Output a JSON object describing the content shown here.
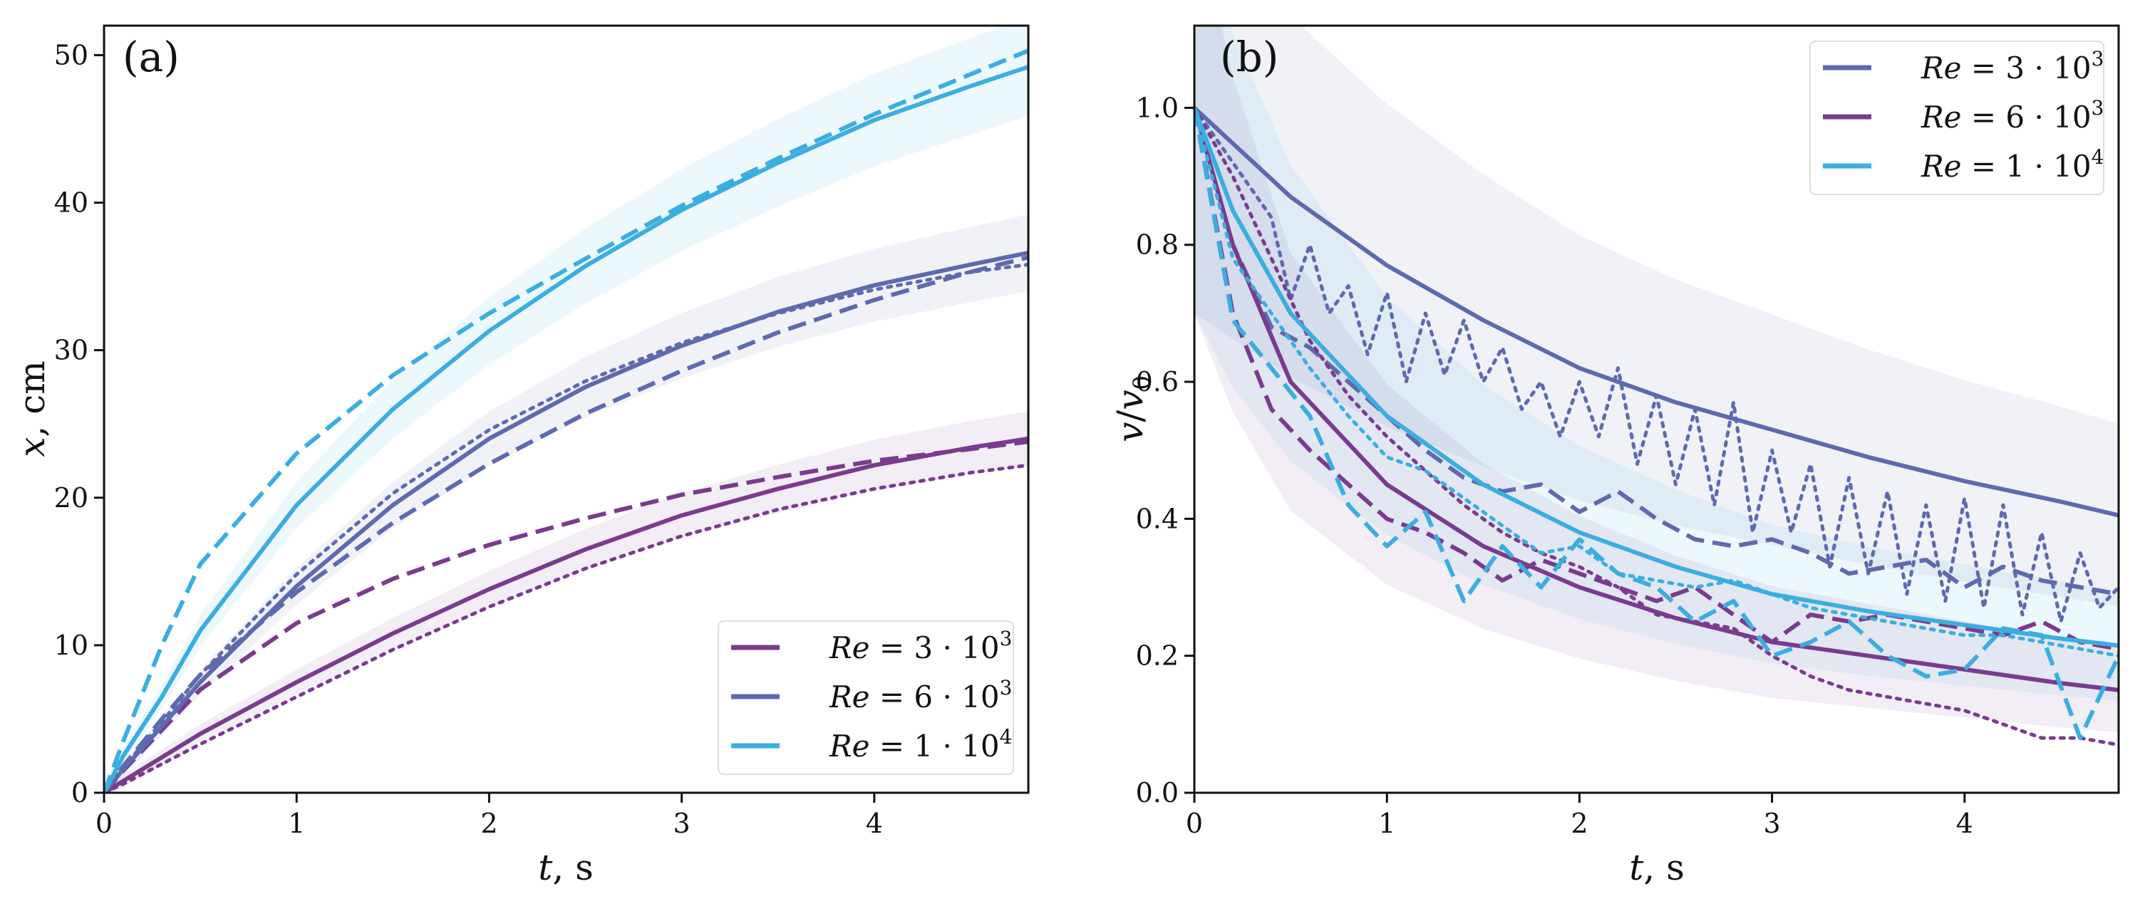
{
  "figure": {
    "colors": {
      "purple": "#7a3b8f",
      "slate": "#5d6aaf",
      "sky": "#3aaee1"
    }
  },
  "chart_data": [
    {
      "type": "line",
      "panel_label": "(a)",
      "xlabel": "t, s",
      "ylabel": "x, cm",
      "xlim": [
        0,
        4.8
      ],
      "ylim": [
        0,
        52
      ],
      "xticks": [
        0,
        1,
        2,
        3,
        4
      ],
      "yticks": [
        0,
        10,
        20,
        30,
        40,
        50
      ],
      "legend": {
        "placement": "bottom-right",
        "entries": [
          {
            "label": "Re = 3 · 10^3",
            "color": "#7a3b8f"
          },
          {
            "label": "Re = 6 · 10^3",
            "color": "#5d6aaf"
          },
          {
            "label": "Re = 1 · 10^4",
            "color": "#3aaee1"
          }
        ]
      },
      "series": [
        {
          "name": "Re=3e3 solid",
          "color": "#7a3b8f",
          "style": "solid",
          "x": [
            0,
            0.1,
            0.5,
            1,
            1.5,
            2,
            2.5,
            3,
            3.5,
            4,
            4.5,
            4.8
          ],
          "y": [
            0,
            0.8,
            4,
            7.5,
            10.8,
            13.8,
            16.5,
            18.8,
            20.6,
            22.2,
            23.4,
            24
          ]
        },
        {
          "name": "Re=3e3 dashed",
          "color": "#7a3b8f",
          "style": "dashed",
          "x": [
            0,
            0.1,
            0.5,
            1,
            1.5,
            2,
            2.5,
            3,
            3.5,
            4,
            4.5,
            4.8
          ],
          "y": [
            0,
            1.5,
            7,
            11.5,
            14.5,
            16.8,
            18.6,
            20.2,
            21.4,
            22.5,
            23.3,
            23.8
          ]
        },
        {
          "name": "Re=3e3 dotted",
          "color": "#7a3b8f",
          "style": "dotted",
          "x": [
            0,
            0.1,
            0.5,
            1,
            1.5,
            2,
            2.5,
            3,
            3.5,
            4,
            4.5,
            4.8
          ],
          "y": [
            0,
            0.6,
            3.3,
            6.5,
            9.7,
            12.6,
            15.2,
            17.4,
            19.2,
            20.6,
            21.7,
            22.2
          ]
        },
        {
          "name": "Re=6e3 solid",
          "color": "#5d6aaf",
          "style": "solid",
          "x": [
            0,
            0.1,
            0.3,
            0.5,
            1,
            1.5,
            2,
            2.5,
            3,
            3.5,
            4,
            4.5,
            4.8
          ],
          "y": [
            0,
            1.6,
            4.5,
            7.5,
            14,
            19.5,
            24,
            27.5,
            30.3,
            32.6,
            34.4,
            35.8,
            36.6
          ]
        },
        {
          "name": "Re=6e3 dashed",
          "color": "#5d6aaf",
          "style": "dashed",
          "x": [
            0,
            0.1,
            0.3,
            0.5,
            1,
            1.5,
            2,
            2.5,
            3,
            3.5,
            4,
            4.5,
            4.8
          ],
          "y": [
            0,
            1.8,
            5,
            8,
            13.6,
            18.3,
            22.3,
            25.7,
            28.6,
            31.2,
            33.4,
            35.3,
            36.3
          ]
        },
        {
          "name": "Re=6e3 dotted",
          "color": "#5d6aaf",
          "style": "dotted",
          "x": [
            0,
            0.1,
            0.3,
            0.5,
            1,
            1.5,
            2,
            2.5,
            3,
            3.5,
            4,
            4.5,
            4.8
          ],
          "y": [
            0,
            1.7,
            4.8,
            8,
            14.8,
            20.3,
            24.6,
            27.9,
            30.5,
            32.5,
            34.1,
            35.3,
            35.8
          ]
        },
        {
          "name": "Re=1e4 solid",
          "color": "#3aaee1",
          "style": "solid",
          "x": [
            0,
            0.1,
            0.3,
            0.5,
            1,
            1.5,
            2,
            2.5,
            3,
            3.5,
            4,
            4.5,
            4.8
          ],
          "y": [
            0,
            2.5,
            6.5,
            11,
            19.5,
            26,
            31.3,
            35.7,
            39.5,
            42.7,
            45.6,
            47.9,
            49.2
          ]
        },
        {
          "name": "Re=1e4 dashed",
          "color": "#3aaee1",
          "style": "dashed",
          "x": [
            0,
            0.1,
            0.3,
            0.5,
            1,
            1.5,
            2,
            2.5,
            3,
            3.5,
            4,
            4.5,
            4.8
          ],
          "y": [
            0,
            3.5,
            10,
            15.5,
            23,
            28.3,
            32.5,
            36.2,
            39.8,
            43,
            46,
            48.7,
            50.3
          ]
        }
      ]
    },
    {
      "type": "line",
      "panel_label": "(b)",
      "xlabel": "t, s",
      "ylabel": "v/v0",
      "xlim": [
        0,
        4.8
      ],
      "ylim": [
        0,
        1.12
      ],
      "xticks": [
        0,
        1,
        2,
        3,
        4
      ],
      "yticks": [
        0.0,
        0.2,
        0.4,
        0.6,
        0.8,
        1.0
      ],
      "legend": {
        "placement": "top-right",
        "entries": [
          {
            "label": "Re = 3 · 10^3",
            "color": "#5d6aaf"
          },
          {
            "label": "Re = 6 · 10^3",
            "color": "#7a3b8f"
          },
          {
            "label": "Re = 1 · 10^4",
            "color": "#3aaee1"
          }
        ]
      },
      "series": [
        {
          "name": "slate solid",
          "color": "#5d6aaf",
          "style": "solid",
          "x": [
            0,
            0.5,
            1,
            1.5,
            2,
            2.5,
            3,
            3.5,
            4,
            4.5,
            4.8
          ],
          "y": [
            1,
            0.87,
            0.77,
            0.69,
            0.62,
            0.57,
            0.53,
            0.49,
            0.455,
            0.425,
            0.405
          ]
        },
        {
          "name": "slate dashed",
          "color": "#5d6aaf",
          "style": "dashed",
          "x": [
            0,
            0.2,
            0.4,
            0.6,
            0.8,
            1,
            1.2,
            1.4,
            1.6,
            1.8,
            2,
            2.2,
            2.4,
            2.6,
            2.8,
            3,
            3.2,
            3.4,
            3.6,
            3.8,
            4,
            4.2,
            4.4,
            4.6,
            4.8
          ],
          "y": [
            1,
            0.8,
            0.68,
            0.65,
            0.6,
            0.55,
            0.5,
            0.46,
            0.44,
            0.45,
            0.41,
            0.44,
            0.4,
            0.37,
            0.36,
            0.37,
            0.35,
            0.32,
            0.33,
            0.34,
            0.3,
            0.33,
            0.31,
            0.3,
            0.29
          ]
        },
        {
          "name": "slate dotted",
          "color": "#5d6aaf",
          "style": "dotted",
          "x": [
            0,
            0.2,
            0.4,
            0.5,
            0.6,
            0.7,
            0.8,
            0.9,
            1,
            1.1,
            1.2,
            1.3,
            1.4,
            1.5,
            1.6,
            1.7,
            1.8,
            1.9,
            2,
            2.1,
            2.2,
            2.3,
            2.4,
            2.5,
            2.6,
            2.7,
            2.8,
            2.9,
            3,
            3.1,
            3.2,
            3.3,
            3.4,
            3.5,
            3.6,
            3.7,
            3.8,
            3.9,
            4,
            4.1,
            4.2,
            4.3,
            4.4,
            4.5,
            4.6,
            4.7,
            4.8
          ],
          "y": [
            1,
            0.92,
            0.84,
            0.72,
            0.8,
            0.7,
            0.74,
            0.64,
            0.73,
            0.6,
            0.7,
            0.61,
            0.69,
            0.6,
            0.65,
            0.56,
            0.6,
            0.52,
            0.6,
            0.52,
            0.62,
            0.48,
            0.58,
            0.45,
            0.56,
            0.42,
            0.57,
            0.38,
            0.5,
            0.38,
            0.48,
            0.33,
            0.46,
            0.32,
            0.44,
            0.29,
            0.42,
            0.28,
            0.43,
            0.27,
            0.42,
            0.26,
            0.38,
            0.25,
            0.35,
            0.27,
            0.3
          ]
        },
        {
          "name": "purple solid",
          "color": "#7a3b8f",
          "style": "solid",
          "x": [
            0,
            0.2,
            0.5,
            1,
            1.5,
            2,
            2.5,
            3,
            3.5,
            4,
            4.5,
            4.8
          ],
          "y": [
            1,
            0.8,
            0.6,
            0.45,
            0.36,
            0.3,
            0.255,
            0.22,
            0.2,
            0.18,
            0.16,
            0.15
          ]
        },
        {
          "name": "purple dashed",
          "color": "#7a3b8f",
          "style": "dashed",
          "x": [
            0,
            0.2,
            0.4,
            0.6,
            0.8,
            1,
            1.2,
            1.4,
            1.6,
            1.8,
            2,
            2.2,
            2.4,
            2.6,
            2.8,
            3,
            3.2,
            3.4,
            3.6,
            3.8,
            4,
            4.2,
            4.4,
            4.6,
            4.8
          ],
          "y": [
            1,
            0.7,
            0.56,
            0.5,
            0.45,
            0.4,
            0.38,
            0.35,
            0.31,
            0.34,
            0.32,
            0.3,
            0.28,
            0.3,
            0.26,
            0.22,
            0.26,
            0.25,
            0.26,
            0.25,
            0.24,
            0.23,
            0.25,
            0.22,
            0.21
          ]
        },
        {
          "name": "purple dotted",
          "color": "#7a3b8f",
          "style": "dotted",
          "x": [
            0,
            0.2,
            0.4,
            0.6,
            0.8,
            1,
            1.2,
            1.4,
            1.6,
            1.8,
            2,
            2.2,
            2.4,
            2.6,
            2.8,
            3,
            3.2,
            3.4,
            3.6,
            3.8,
            4,
            4.2,
            4.4,
            4.6,
            4.8
          ],
          "y": [
            1,
            0.9,
            0.78,
            0.66,
            0.58,
            0.52,
            0.47,
            0.42,
            0.38,
            0.35,
            0.33,
            0.3,
            0.26,
            0.25,
            0.24,
            0.2,
            0.17,
            0.15,
            0.14,
            0.13,
            0.12,
            0.1,
            0.08,
            0.08,
            0.07
          ]
        },
        {
          "name": "sky solid",
          "color": "#3aaee1",
          "style": "solid",
          "x": [
            0,
            0.2,
            0.5,
            1,
            1.5,
            2,
            2.5,
            3,
            3.5,
            4,
            4.5,
            4.8
          ],
          "y": [
            1,
            0.85,
            0.7,
            0.55,
            0.45,
            0.38,
            0.33,
            0.29,
            0.265,
            0.245,
            0.225,
            0.215
          ]
        },
        {
          "name": "sky dashed",
          "color": "#3aaee1",
          "style": "dashed",
          "x": [
            0,
            0.2,
            0.4,
            0.6,
            0.8,
            1,
            1.2,
            1.4,
            1.6,
            1.8,
            2,
            2.2,
            2.4,
            2.6,
            2.8,
            3,
            3.2,
            3.4,
            3.6,
            3.8,
            4,
            4.2,
            4.4,
            4.6,
            4.8
          ],
          "y": [
            1,
            0.69,
            0.62,
            0.55,
            0.42,
            0.36,
            0.41,
            0.28,
            0.36,
            0.3,
            0.37,
            0.32,
            0.3,
            0.25,
            0.28,
            0.2,
            0.22,
            0.25,
            0.2,
            0.17,
            0.18,
            0.24,
            0.23,
            0.08,
            0.2
          ]
        },
        {
          "name": "sky dotted",
          "color": "#3aaee1",
          "style": "dotted",
          "x": [
            0,
            0.2,
            0.4,
            0.6,
            0.8,
            1,
            1.2,
            1.4,
            1.6,
            1.8,
            2,
            2.2,
            2.4,
            2.6,
            2.8,
            3,
            3.2,
            3.4,
            3.6,
            3.8,
            4,
            4.2,
            4.4,
            4.6,
            4.8
          ],
          "y": [
            1,
            0.78,
            0.7,
            0.62,
            0.55,
            0.49,
            0.47,
            0.43,
            0.39,
            0.35,
            0.36,
            0.32,
            0.31,
            0.3,
            0.31,
            0.29,
            0.27,
            0.26,
            0.25,
            0.24,
            0.23,
            0.23,
            0.22,
            0.21,
            0.2
          ]
        }
      ]
    }
  ]
}
